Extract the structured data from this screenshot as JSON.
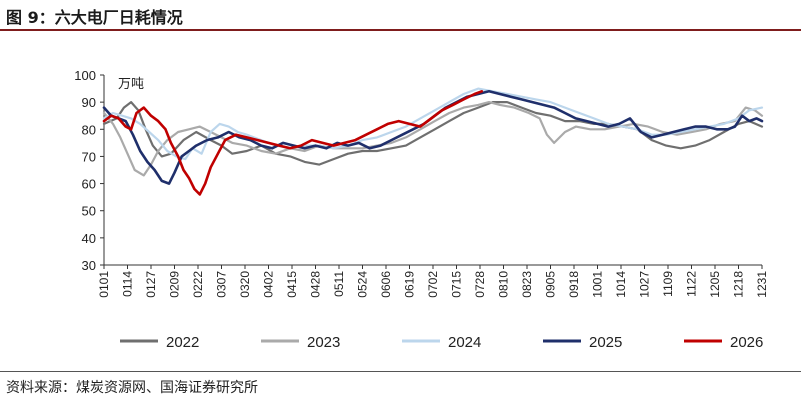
{
  "figure": {
    "title": "图 9：六大电厂日耗情况",
    "source": "资料来源：煤炭资源网、国海证券研究所"
  },
  "chart_data": {
    "type": "line",
    "unit": "万吨",
    "ylim": [
      30,
      100
    ],
    "yticks": [
      30,
      40,
      50,
      60,
      70,
      80,
      90,
      100
    ],
    "xlim": [
      1,
      365
    ],
    "grid": false,
    "legend_position": "bottom",
    "x_tick_labels": [
      "0101",
      "0114",
      "0127",
      "0209",
      "0222",
      "0307",
      "0320",
      "0402",
      "0415",
      "0428",
      "0511",
      "0524",
      "0606",
      "0619",
      "0702",
      "0715",
      "0728",
      "0810",
      "0823",
      "0905",
      "0918",
      "1001",
      "1014",
      "1027",
      "1109",
      "1122",
      "1205",
      "1218",
      "1231"
    ],
    "x_tick_days": [
      1,
      14,
      27,
      40,
      53,
      66,
      79,
      92,
      105,
      118,
      131,
      144,
      157,
      170,
      183,
      196,
      209,
      222,
      235,
      248,
      261,
      274,
      287,
      300,
      313,
      326,
      339,
      352,
      365
    ],
    "series": [
      {
        "name": "2022",
        "color": "#6f6f6f",
        "width": 2.2,
        "x": [
          1,
          8,
          12,
          16,
          20,
          24,
          28,
          33,
          38,
          45,
          52,
          60,
          66,
          72,
          80,
          88,
          96,
          104,
          112,
          120,
          128,
          136,
          144,
          152,
          160,
          168,
          176,
          184,
          192,
          200,
          208,
          216,
          224,
          232,
          240,
          248,
          256,
          264,
          272,
          280,
          288,
          296,
          304,
          312,
          320,
          328,
          336,
          344,
          352,
          358,
          365
        ],
        "y": [
          82,
          84,
          88,
          90,
          87,
          80,
          74,
          70,
          71,
          76,
          79,
          76,
          74,
          71,
          72,
          74,
          71,
          70,
          68,
          67,
          69,
          71,
          72,
          72,
          73,
          74,
          77,
          80,
          83,
          86,
          88,
          90,
          90,
          88,
          86,
          85,
          83,
          83,
          82,
          82,
          81,
          80,
          76,
          74,
          73,
          74,
          76,
          79,
          82,
          83,
          81
        ]
      },
      {
        "name": "2023",
        "color": "#aaaaaa",
        "width": 2.2,
        "x": [
          1,
          6,
          10,
          14,
          18,
          23,
          27,
          31,
          36,
          42,
          48,
          54,
          60,
          66,
          72,
          80,
          88,
          96,
          104,
          112,
          120,
          128,
          136,
          144,
          152,
          160,
          168,
          176,
          184,
          192,
          200,
          208,
          214,
          220,
          228,
          236,
          242,
          246,
          250,
          256,
          262,
          270,
          278,
          286,
          294,
          302,
          310,
          318,
          326,
          334,
          342,
          350,
          356,
          361,
          365
        ],
        "y": [
          86,
          82,
          77,
          71,
          65,
          63,
          67,
          72,
          76,
          79,
          80,
          81,
          79,
          77,
          75,
          74,
          72,
          71,
          73,
          72,
          74,
          73,
          73,
          73,
          74,
          75,
          77,
          80,
          83,
          86,
          88,
          89,
          90,
          89,
          88,
          86,
          84,
          78,
          75,
          79,
          81,
          80,
          80,
          81,
          82,
          81,
          79,
          78,
          79,
          80,
          82,
          83,
          88,
          87,
          85
        ]
      },
      {
        "name": "2024",
        "color": "#bcd6ec",
        "width": 2.2,
        "x": [
          1,
          6,
          11,
          16,
          21,
          26,
          31,
          36,
          41,
          46,
          50,
          55,
          60,
          65,
          70,
          75,
          80,
          88,
          96,
          104,
          112,
          120,
          128,
          136,
          144,
          152,
          160,
          168,
          176,
          184,
          192,
          200,
          208,
          216,
          224,
          232,
          240,
          248,
          256,
          264,
          272,
          280,
          288,
          296,
          304,
          312,
          320,
          328,
          336,
          344,
          352,
          358,
          365
        ],
        "y": [
          84,
          86,
          85,
          84,
          82,
          79,
          76,
          72,
          70,
          69,
          73,
          71,
          79,
          82,
          81,
          79,
          78,
          76,
          74,
          73,
          74,
          74,
          73,
          74,
          76,
          77,
          79,
          81,
          84,
          87,
          90,
          93,
          95,
          94,
          93,
          92,
          91,
          90,
          88,
          86,
          84,
          82,
          81,
          80,
          78,
          78,
          79,
          80,
          81,
          82,
          84,
          87,
          88
        ]
      },
      {
        "name": "2025",
        "color": "#1f2f6b",
        "width": 2.6,
        "x": [
          1,
          5,
          9,
          13,
          17,
          21,
          25,
          29,
          33,
          37,
          40,
          44,
          48,
          52,
          58,
          64,
          70,
          76,
          82,
          88,
          94,
          100,
          106,
          112,
          118,
          124,
          130,
          136,
          142,
          148,
          154,
          160,
          166,
          172,
          178,
          184,
          190,
          196,
          202,
          208,
          214,
          220,
          226,
          232,
          238,
          244,
          250,
          256,
          262,
          268,
          274,
          280,
          286,
          292,
          298,
          304,
          310,
          316,
          322,
          328,
          334,
          340,
          346,
          350,
          354,
          358,
          362,
          365
        ],
        "y": [
          88,
          85,
          84,
          83,
          78,
          72,
          68,
          65,
          61,
          60,
          64,
          70,
          72,
          74,
          76,
          77,
          79,
          77,
          76,
          74,
          73,
          75,
          74,
          73,
          74,
          73,
          75,
          74,
          75,
          73,
          74,
          76,
          78,
          80,
          82,
          85,
          88,
          90,
          92,
          93,
          94,
          93,
          92,
          91,
          90,
          89,
          88,
          86,
          84,
          83,
          82,
          81,
          82,
          84,
          79,
          77,
          78,
          79,
          80,
          81,
          81,
          80,
          80,
          81,
          85,
          83,
          84,
          83
        ]
      },
      {
        "name": "2026",
        "color": "#c00000",
        "width": 2.6,
        "x": [
          1,
          5,
          9,
          13,
          16,
          19,
          23,
          27,
          31,
          35,
          38,
          42,
          45,
          48,
          51,
          54,
          57,
          60,
          64,
          68,
          74,
          80,
          86,
          92,
          98,
          104,
          110,
          116,
          122,
          128,
          134,
          140,
          146,
          152,
          158,
          164,
          170,
          176,
          182,
          188,
          194,
          200,
          206,
          210
        ],
        "y": [
          83,
          85,
          84,
          81,
          80,
          86,
          88,
          85,
          83,
          80,
          75,
          70,
          65,
          62,
          58,
          56,
          60,
          66,
          71,
          76,
          78,
          77,
          76,
          75,
          74,
          73,
          74,
          76,
          75,
          74,
          75,
          76,
          78,
          80,
          82,
          83,
          82,
          81,
          84,
          87,
          89,
          91,
          93,
          94
        ]
      }
    ]
  }
}
